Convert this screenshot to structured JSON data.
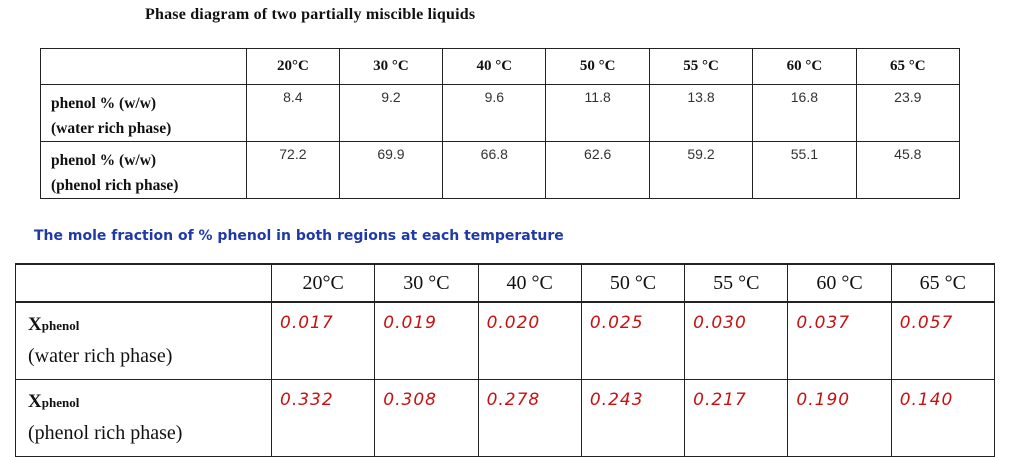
{
  "title": "Phase diagram of two partially miscible liquids",
  "table1": {
    "headers": [
      "20°C",
      "30 °C",
      "40 °C",
      "50 °C",
      "55 °C",
      "60 °C",
      "65 °C"
    ],
    "rows": [
      {
        "label_line1": "phenol % (w/w)",
        "label_line2": "(water rich phase)",
        "values": [
          "8.4",
          "9.2",
          "9.6",
          "11.8",
          "13.8",
          "16.8",
          "23.9"
        ]
      },
      {
        "label_line1": "phenol % (w/w)",
        "label_line2": "(phenol rich phase)",
        "values": [
          "72.2",
          "69.9",
          "66.8",
          "62.6",
          "59.2",
          "55.1",
          "45.8"
        ]
      }
    ]
  },
  "subtitle": "The mole fraction of % phenol in both regions at each temperature",
  "table2": {
    "headers": [
      "20°C",
      "30 °C",
      "40 °C",
      "50 °C",
      "55 °C",
      "60 °C",
      "65 °C"
    ],
    "rows": [
      {
        "symbol": "X",
        "subscript": "phenol",
        "label_line2": "(water rich phase)",
        "values": [
          "0.017",
          "0.019",
          "0.020",
          "0.025",
          "0.030",
          "0.037",
          "0.057"
        ]
      },
      {
        "symbol": "X",
        "subscript": "phenol",
        "label_line2": "(phenol rich phase)",
        "values": [
          "0.332",
          "0.308",
          "0.278",
          "0.243",
          "0.217",
          "0.190",
          "0.140"
        ]
      }
    ]
  },
  "colors": {
    "subtitle": "#1f3aa8",
    "handwriting": "#c81010"
  }
}
